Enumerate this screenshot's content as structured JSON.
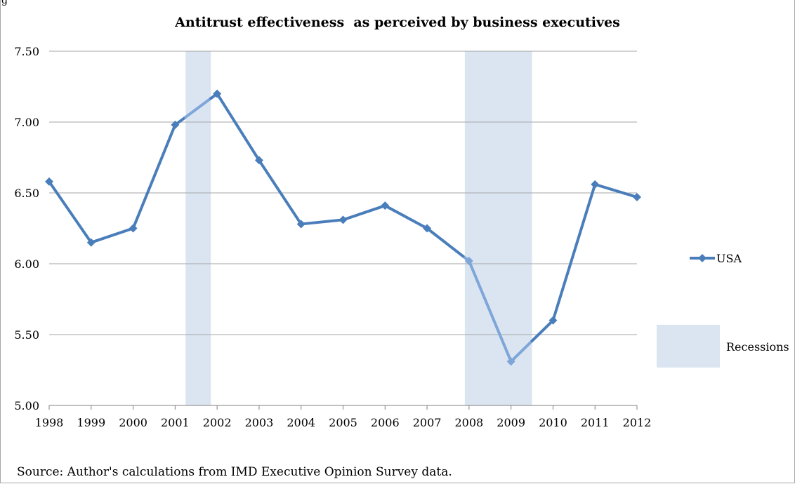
{
  "corner_label": "g",
  "source_note": "Source: Author's calculations from  IMD Executive Opinion Survey data.",
  "colors": {
    "line": "#4a7ebb",
    "line_recession": "#7ea6d8",
    "recession_band": "#dbe5f1",
    "gridline": "#a6a6a6",
    "axis": "#808080"
  },
  "chart_data": {
    "type": "line",
    "title": "Antitrust effectiveness  as perceived by business executives",
    "xlabel": "",
    "ylabel": "",
    "categories": [
      "1998",
      "1999",
      "2000",
      "2001",
      "2002",
      "2003",
      "2004",
      "2005",
      "2006",
      "2007",
      "2008",
      "2009",
      "2010",
      "2011",
      "2012"
    ],
    "ylim": [
      5.0,
      7.5
    ],
    "yticks": [
      "5.00",
      "5.50",
      "6.00",
      "6.50",
      "7.00",
      "7.50"
    ],
    "grid": true,
    "legend_position": "right",
    "series": [
      {
        "name": "USA",
        "marker": "diamond",
        "values": [
          6.58,
          6.15,
          6.25,
          6.98,
          7.2,
          6.73,
          6.28,
          6.31,
          6.41,
          6.25,
          6.02,
          5.31,
          5.6,
          6.56,
          6.47
        ]
      }
    ],
    "recessions": [
      {
        "label": "Recessions",
        "start": 2001.25,
        "end": 2001.85
      },
      {
        "label": "Recessions",
        "start": 2007.9,
        "end": 2009.5
      }
    ],
    "recession_legend_label": "Recessions"
  }
}
